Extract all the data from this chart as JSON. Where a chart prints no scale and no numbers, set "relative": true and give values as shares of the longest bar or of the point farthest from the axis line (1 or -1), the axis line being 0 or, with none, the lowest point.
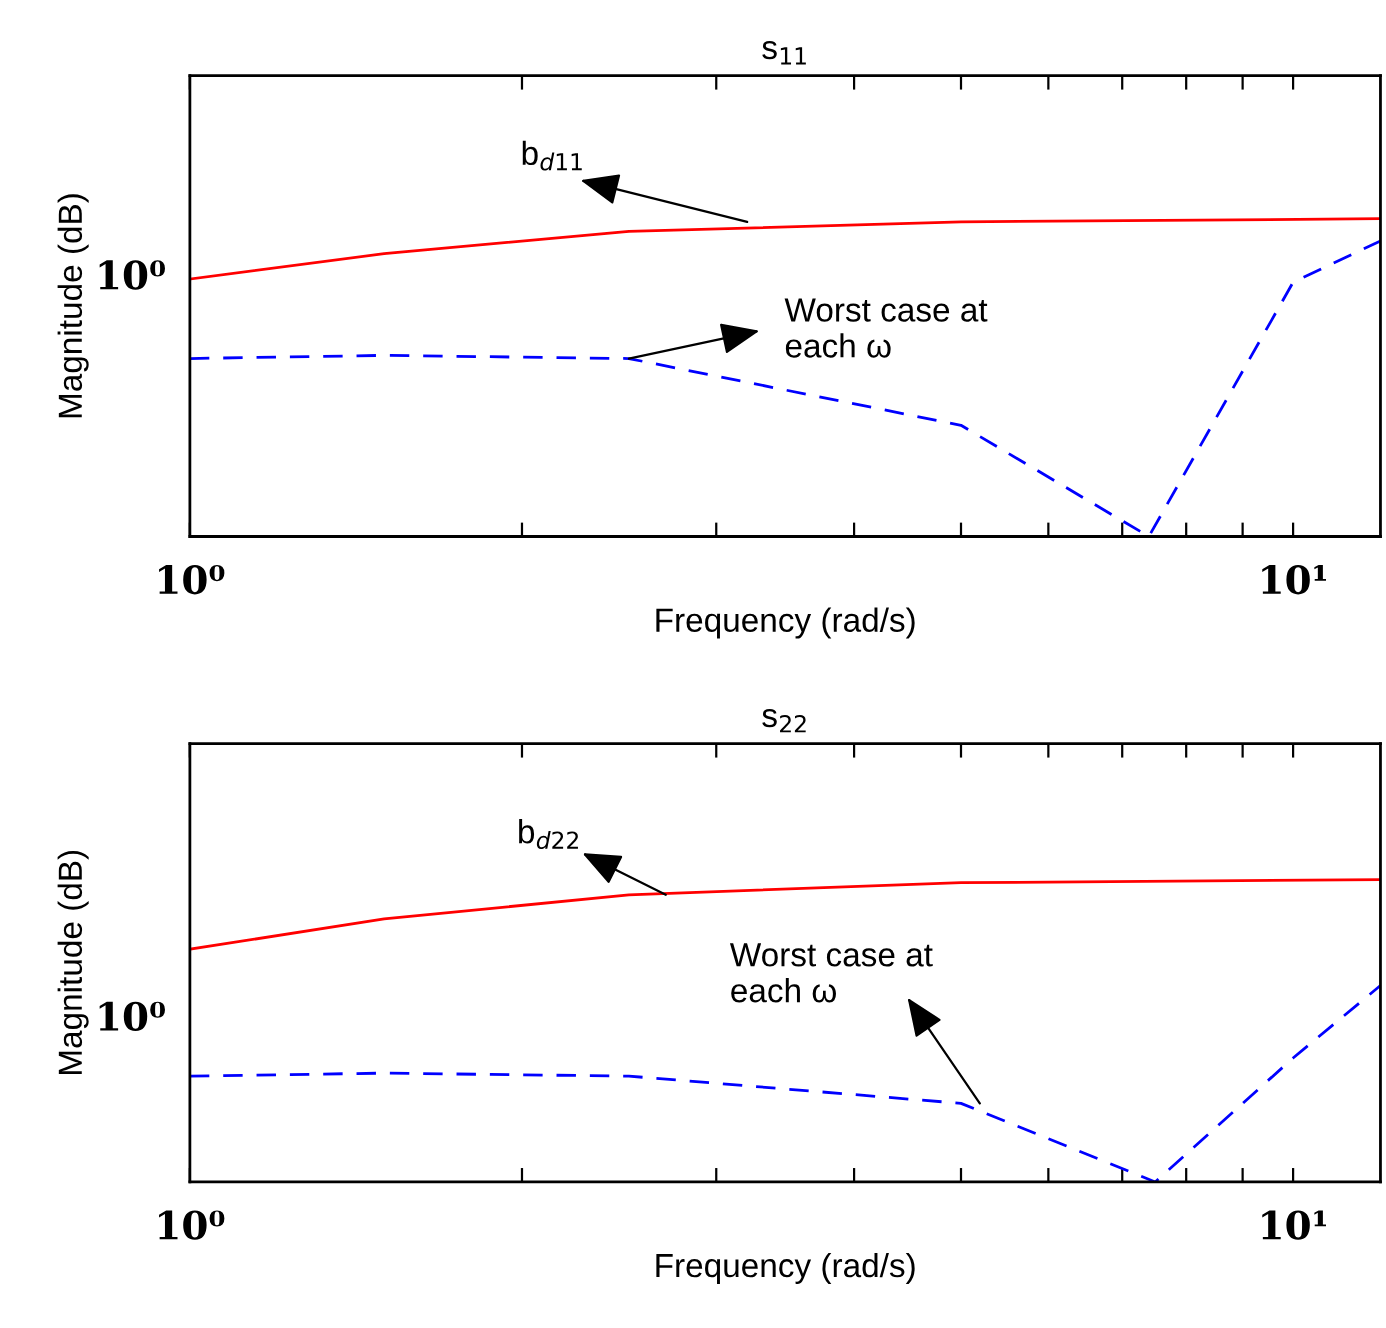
{
  "chart_data": [
    {
      "type": "line",
      "title": "s$_{11}$",
      "xlabel": "Frequency (rad/s)",
      "ylabel": "Magnitude (dB)",
      "relative": true,
      "log": "x",
      "grid": false,
      "legend": false,
      "marker": "none",
      "xlim": [
        1,
        12
      ],
      "xticks": [
        {
          "value": 1,
          "label": "10⁰"
        },
        {
          "value": 2,
          "label": null
        },
        {
          "value": 3,
          "label": null
        },
        {
          "value": 4,
          "label": null
        },
        {
          "value": 5,
          "label": null
        },
        {
          "value": 6,
          "label": null
        },
        {
          "value": 7,
          "label": null
        },
        {
          "value": 8,
          "label": null
        },
        {
          "value": 9,
          "label": null
        },
        {
          "value": 10,
          "label": "10¹"
        }
      ],
      "series": [
        {
          "color": "#ff0000",
          "line_style": "solid",
          "x": [
            1,
            1.5,
            2.5,
            5,
            12
          ],
          "values": [
            0.81,
            0.89,
            0.96,
            0.99,
            1.0
          ]
        },
        {
          "color": "#0000ff",
          "line_style": "dashed",
          "x": [
            1,
            1.5,
            2.5,
            5,
            7.4,
            10,
            12
          ],
          "values": [
            0.56,
            0.57,
            0.56,
            0.35,
            0.0,
            0.8,
            0.93
          ]
        }
      ],
      "annotations": [
        {
          "text": "b$_{d11}$",
          "x": 3.2,
          "y": 0.99
        },
        {
          "text": "Worst case at\neach ω",
          "x": 2.5,
          "y": 0.56
        },
        "10⁰"
      ]
    },
    {
      "type": "line",
      "title": "s$_{22}$",
      "xlabel": "Frequency (rad/s)",
      "ylabel": "Magnitude (dB)",
      "relative": true,
      "log": "x",
      "grid": false,
      "legend": false,
      "marker": "none",
      "xlim": [
        1,
        12
      ],
      "xticks": [
        {
          "value": 1,
          "label": "10⁰"
        },
        {
          "value": 2,
          "label": null
        },
        {
          "value": 3,
          "label": null
        },
        {
          "value": 4,
          "label": null
        },
        {
          "value": 5,
          "label": null
        },
        {
          "value": 6,
          "label": null
        },
        {
          "value": 7,
          "label": null
        },
        {
          "value": 8,
          "label": null
        },
        {
          "value": 9,
          "label": null
        },
        {
          "value": 10,
          "label": "10¹"
        }
      ],
      "series": [
        {
          "color": "#ff0000",
          "line_style": "solid",
          "x": [
            1,
            1.5,
            2.5,
            5,
            12
          ],
          "values": [
            0.77,
            0.87,
            0.95,
            0.99,
            1.0
          ]
        },
        {
          "color": "#0000ff",
          "line_style": "dashed",
          "x": [
            1,
            1.5,
            2.5,
            5,
            7.5,
            10,
            12
          ],
          "values": [
            0.35,
            0.36,
            0.35,
            0.26,
            0.0,
            0.41,
            0.65
          ]
        }
      ],
      "annotations": [
        {
          "text": "b$_{d22}$",
          "x": 2.7,
          "y": 0.95
        },
        {
          "text": "Worst case at\neach ω",
          "x": 5.2,
          "y": 0.26
        },
        "10⁰"
      ]
    }
  ]
}
